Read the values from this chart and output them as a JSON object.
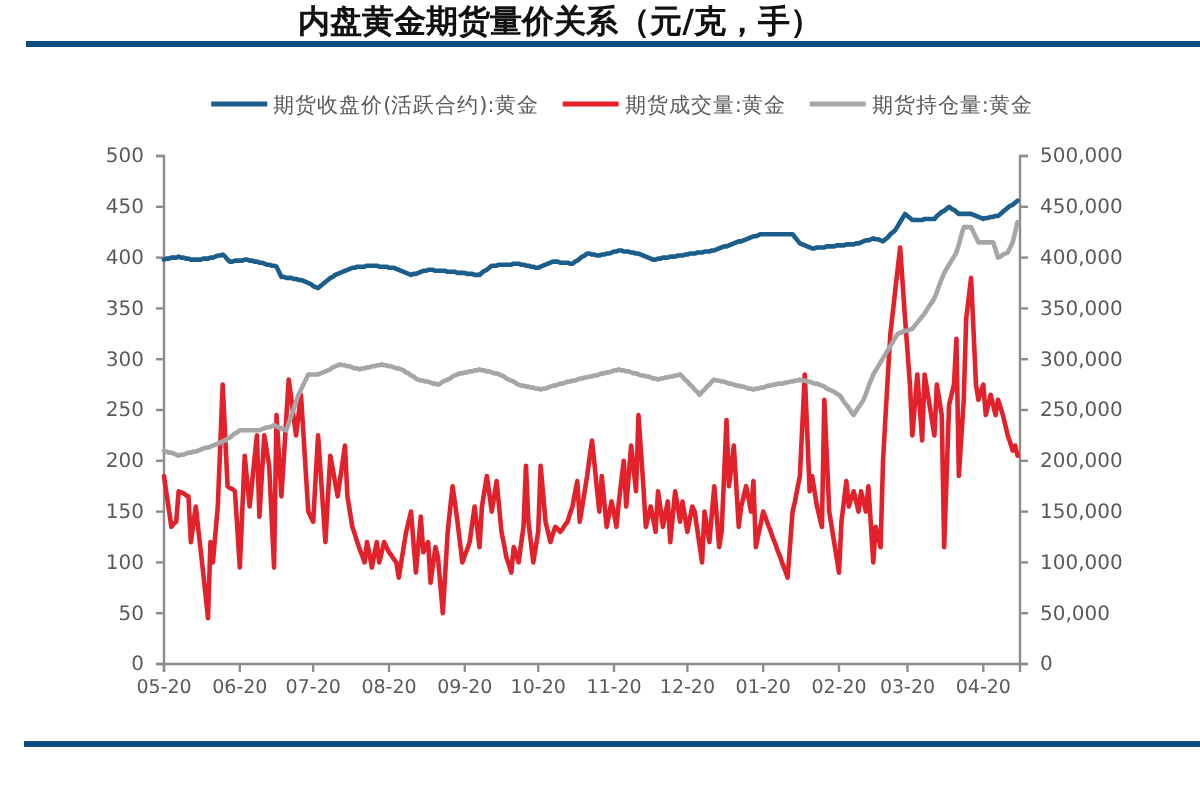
{
  "chart_data": {
    "type": "line",
    "title": "内盘黄金期货量价关系（元/克，手）",
    "legend": "top",
    "categories": [
      "05-20",
      null,
      null,
      null,
      null,
      null,
      null,
      null,
      null,
      null,
      null,
      null,
      null,
      null,
      null,
      null,
      null,
      null,
      null,
      null,
      null,
      null,
      null,
      null,
      null,
      null,
      null,
      null,
      null,
      null,
      null,
      "06-20",
      null,
      null,
      null,
      null,
      null,
      null,
      null,
      null,
      null,
      null,
      null,
      null,
      null,
      null,
      null,
      null,
      null,
      null,
      null,
      null,
      null,
      null,
      null,
      null,
      null,
      null,
      null,
      null,
      null,
      "07-20",
      null,
      null,
      null,
      null,
      null,
      null,
      null,
      null,
      null,
      null,
      null,
      null,
      null,
      null,
      null,
      null,
      null,
      null,
      null,
      null,
      null,
      null,
      null,
      null,
      null,
      null,
      null,
      null,
      null,
      null,
      "08-20",
      null,
      null,
      null,
      null,
      null,
      null,
      null,
      null,
      null,
      null,
      null,
      null,
      null,
      null,
      null,
      null,
      null,
      null,
      null,
      null,
      null,
      null,
      null,
      null,
      null,
      null,
      null,
      null,
      null,
      null,
      "09-20",
      null,
      null,
      null,
      null,
      null,
      null,
      null,
      null,
      null,
      null,
      null,
      null,
      null,
      null,
      null,
      null,
      null,
      null,
      null,
      null,
      null,
      null,
      null,
      null,
      null,
      null,
      null,
      null,
      null,
      "10-20",
      null,
      null,
      null,
      null,
      null,
      null,
      null,
      null,
      null,
      null,
      null,
      null,
      null,
      null,
      null,
      null,
      null,
      null,
      null,
      null,
      null,
      null,
      null,
      null,
      null,
      null,
      null,
      null,
      null,
      null,
      "11-20",
      null,
      null,
      null,
      null,
      null,
      null,
      null,
      null,
      null,
      null,
      null,
      null,
      null,
      null,
      null,
      null,
      null,
      null,
      null,
      null,
      null,
      null,
      null,
      null,
      null,
      null,
      null,
      null,
      null,
      "12-20",
      null,
      null,
      null,
      null,
      null,
      null,
      null,
      null,
      null,
      null,
      null,
      null,
      null,
      null,
      null,
      null,
      null,
      null,
      null,
      null,
      null,
      null,
      null,
      null,
      null,
      null,
      null,
      null,
      null,
      null,
      "01-20",
      null,
      null,
      null,
      null,
      null,
      null,
      null,
      null,
      null,
      null,
      null,
      null,
      null,
      null,
      null,
      null,
      null,
      null,
      null,
      null,
      null,
      null,
      null,
      null,
      null,
      null,
      null,
      null,
      null,
      null,
      "02-20",
      null,
      null,
      null,
      null,
      null,
      null,
      null,
      null,
      null,
      null,
      null,
      null,
      null,
      null,
      null,
      null,
      null,
      null,
      null,
      null,
      null,
      null,
      null,
      null,
      null,
      null,
      null,
      "03-20",
      null,
      null,
      null,
      null,
      null,
      null,
      null,
      null,
      null,
      null,
      null,
      null,
      null,
      null,
      null,
      null,
      null,
      null,
      null,
      null,
      null,
      null,
      null,
      null,
      null,
      null,
      null,
      null,
      null,
      null,
      "04-20",
      null,
      null,
      null,
      null,
      null,
      null,
      null,
      null,
      null,
      null,
      null,
      null,
      null,
      null,
      null
    ],
    "ylim": [
      0,
      500
    ],
    "yticks": [
      0,
      50,
      100,
      150,
      200,
      250,
      300,
      350,
      400,
      450,
      500
    ],
    "y2lim": [
      0,
      500000
    ],
    "y2ticks": [
      {
        "value": 0,
        "label": "0"
      },
      {
        "value": 50000,
        "label": "50,000"
      },
      {
        "value": 100000,
        "label": "100,000"
      },
      {
        "value": 150000,
        "label": "150,000"
      },
      {
        "value": 200000,
        "label": "200,000"
      },
      {
        "value": 250000,
        "label": "250,000"
      },
      {
        "value": 300000,
        "label": "300,000"
      },
      {
        "value": 350000,
        "label": "350,000"
      },
      {
        "value": 400000,
        "label": "400,000"
      },
      {
        "value": 450000,
        "label": "450,000"
      },
      {
        "value": 500000,
        "label": "500,000"
      }
    ],
    "series": [
      {
        "name": "期货收盘价(活跃合约):黄金",
        "color": "#1b5e8c",
        "values": [
          398,
          399,
          399,
          400,
          400,
          400,
          401,
          400,
          400,
          399,
          399,
          398,
          398,
          398,
          398,
          398,
          399,
          399,
          399,
          400,
          400,
          401,
          402,
          402,
          403,
          401,
          398,
          396,
          396,
          397,
          397,
          397,
          397,
          398,
          398,
          397,
          397,
          396,
          396,
          395,
          395,
          394,
          393,
          393,
          392,
          392,
          391,
          386,
          381,
          381,
          380,
          380,
          380,
          379,
          379,
          378,
          378,
          377,
          376,
          375,
          374,
          372,
          371,
          370,
          372,
          374,
          376,
          378,
          380,
          381,
          383,
          384,
          385,
          386,
          387,
          388,
          389,
          390,
          390,
          391,
          391,
          391,
          391,
          392,
          392,
          392,
          392,
          392,
          391,
          391,
          391,
          391,
          390,
          390,
          390,
          389,
          388,
          387,
          386,
          385,
          384,
          383,
          384,
          384,
          385,
          386,
          387,
          387,
          388,
          388,
          388,
          387,
          387,
          387,
          387,
          387,
          386,
          386,
          386,
          386,
          385,
          385,
          385,
          385,
          384,
          384,
          384,
          383,
          383,
          383,
          385,
          387,
          388,
          390,
          392,
          392,
          392,
          393,
          393,
          393,
          393,
          393,
          393,
          394,
          394,
          394,
          393,
          393,
          392,
          392,
          391,
          391,
          390,
          390,
          391,
          392,
          393,
          394,
          395,
          396,
          396,
          396,
          395,
          395,
          395,
          395,
          394,
          394,
          396,
          397,
          399,
          401,
          402,
          404,
          404,
          403,
          403,
          402,
          402,
          403,
          403,
          404,
          404,
          405,
          406,
          406,
          407,
          407,
          406,
          406,
          406,
          405,
          405,
          404,
          404,
          403,
          402,
          401,
          400,
          399,
          398,
          398,
          399,
          399,
          400,
          400,
          400,
          401,
          401,
          401,
          402,
          402,
          402,
          403,
          403,
          404,
          404,
          404,
          405,
          405,
          405,
          406,
          406,
          406,
          407,
          407,
          408,
          409,
          410,
          411,
          411,
          412,
          413,
          414,
          415,
          416,
          416,
          417,
          418,
          419,
          420,
          421,
          421,
          422,
          423,
          423,
          423,
          423,
          423,
          423,
          423,
          423,
          423,
          423,
          423,
          423,
          423,
          423,
          420,
          417,
          414,
          413,
          412,
          411,
          410,
          409,
          409,
          410,
          410,
          410,
          410,
          411,
          411,
          411,
          411,
          412,
          412,
          412,
          412,
          413,
          413,
          413,
          413,
          414,
          414,
          415,
          416,
          417,
          417,
          418,
          419,
          418,
          418,
          417,
          416,
          418,
          420,
          423,
          425,
          427,
          431,
          435,
          439,
          443,
          441,
          439,
          437,
          437,
          437,
          437,
          437,
          438,
          438,
          438,
          438,
          438,
          441,
          443,
          445,
          446,
          448,
          450,
          448,
          447,
          445,
          443,
          443,
          443,
          443,
          443,
          443,
          442,
          441,
          440,
          439,
          438,
          439,
          439,
          440,
          440,
          441,
          441,
          443,
          445,
          447,
          449,
          451,
          452,
          454,
          456,
          null
        ]
      },
      {
        "name": "期货成交量:黄金",
        "color": "#e3212a",
        "axis": "y2",
        "values": [
          185000,
          168000,
          152000,
          135000,
          138000,
          140000,
          170000,
          169000,
          168000,
          166000,
          165000,
          120000,
          138000,
          155000,
          133000,
          112000,
          90000,
          68000,
          45000,
          120000,
          100000,
          128000,
          155000,
          215000,
          275000,
          225000,
          175000,
          173000,
          172000,
          170000,
          133000,
          95000,
          150000,
          205000,
          180000,
          155000,
          178000,
          202000,
          225000,
          145000,
          185000,
          225000,
          210000,
          195000,
          145000,
          95000,
          245000,
          205000,
          165000,
          203000,
          242000,
          280000,
          262000,
          243000,
          225000,
          245000,
          265000,
          227000,
          188000,
          150000,
          145000,
          140000,
          183000,
          225000,
          190000,
          155000,
          120000,
          163000,
          205000,
          192000,
          178000,
          165000,
          182000,
          198000,
          215000,
          165000,
          150000,
          135000,
          128000,
          120000,
          113000,
          107000,
          100000,
          120000,
          108000,
          95000,
          108000,
          120000,
          100000,
          110000,
          120000,
          115000,
          110000,
          107000,
          103000,
          100000,
          85000,
          100000,
          115000,
          130000,
          140000,
          150000,
          120000,
          90000,
          118000,
          145000,
          110000,
          115000,
          120000,
          80000,
          98000,
          115000,
          105000,
          78000,
          50000,
          90000,
          130000,
          153000,
          175000,
          158000,
          140000,
          120000,
          100000,
          107000,
          113000,
          120000,
          138000,
          155000,
          135000,
          115000,
          155000,
          170000,
          185000,
          168000,
          150000,
          165000,
          180000,
          155000,
          130000,
          118000,
          105000,
          98000,
          90000,
          115000,
          108000,
          100000,
          118000,
          135000,
          195000,
          140000,
          120000,
          100000,
          115000,
          130000,
          195000,
          168000,
          140000,
          130000,
          120000,
          128000,
          135000,
          133000,
          130000,
          133000,
          137000,
          140000,
          148000,
          155000,
          168000,
          180000,
          140000,
          155000,
          170000,
          185000,
          203000,
          220000,
          197000,
          173000,
          150000,
          185000,
          160000,
          135000,
          148000,
          160000,
          148000,
          135000,
          160000,
          180000,
          200000,
          155000,
          185000,
          215000,
          193000,
          170000,
          245000,
          210000,
          175000,
          135000,
          145000,
          155000,
          143000,
          130000,
          170000,
          153000,
          135000,
          148000,
          160000,
          120000,
          145000,
          170000,
          155000,
          140000,
          160000,
          145000,
          130000,
          143000,
          155000,
          150000,
          133000,
          117000,
          100000,
          150000,
          135000,
          120000,
          148000,
          175000,
          145000,
          115000,
          130000,
          185000,
          240000,
          175000,
          195000,
          215000,
          175000,
          135000,
          155000,
          165000,
          175000,
          163000,
          150000,
          180000,
          115000,
          127000,
          138000,
          150000,
          144000,
          137000,
          131000,
          124000,
          118000,
          111000,
          105000,
          98000,
          92000,
          85000,
          118000,
          150000,
          160000,
          173000,
          185000,
          235000,
          285000,
          228000,
          170000,
          185000,
          170000,
          155000,
          145000,
          135000,
          260000,
          205000,
          150000,
          135000,
          120000,
          105000,
          90000,
          140000,
          160000,
          180000,
          155000,
          163000,
          170000,
          160000,
          150000,
          170000,
          160000,
          150000,
          175000,
          138000,
          100000,
          135000,
          125000,
          115000,
          200000,
          243000,
          285000,
          325000,
          346000,
          368000,
          389000,
          410000,
          375000,
          340000,
          308000,
          275000,
          225000,
          255000,
          285000,
          253000,
          220000,
          285000,
          270000,
          255000,
          240000,
          225000,
          275000,
          260000,
          245000,
          115000,
          185000,
          255000,
          265000,
          275000,
          320000,
          185000,
          223000,
          260000,
          340000,
          360000,
          380000,
          328000,
          275000,
          260000,
          268000,
          275000,
          245000,
          255000,
          265000,
          255000,
          245000,
          260000,
          253000,
          245000,
          235000,
          225000,
          218000,
          210000,
          215000,
          205000,
          null
        ]
      },
      {
        "name": "期货持仓量:黄金",
        "color": "#a6a6a6",
        "axis": "y2",
        "values": [
          210000,
          209000,
          208000,
          208000,
          207000,
          206000,
          205000,
          206000,
          206000,
          207000,
          208000,
          208000,
          209000,
          209000,
          210000,
          211000,
          212000,
          213000,
          213000,
          214000,
          215000,
          216000,
          217000,
          218000,
          219000,
          220000,
          222000,
          223000,
          225000,
          227000,
          228000,
          230000,
          230000,
          230000,
          230000,
          230000,
          230000,
          230000,
          230000,
          230000,
          231000,
          232000,
          233000,
          233000,
          234000,
          235000,
          234000,
          233000,
          232000,
          231000,
          230000,
          237000,
          244000,
          251000,
          258000,
          265000,
          270000,
          275000,
          280000,
          285000,
          285000,
          285000,
          285000,
          285000,
          286000,
          287000,
          288000,
          289000,
          290000,
          292000,
          293000,
          294000,
          295000,
          294000,
          294000,
          293000,
          293000,
          292000,
          291000,
          291000,
          290000,
          291000,
          291000,
          292000,
          292000,
          293000,
          293000,
          294000,
          294000,
          295000,
          294000,
          294000,
          293000,
          293000,
          292000,
          291000,
          291000,
          290000,
          289000,
          287000,
          286000,
          284000,
          283000,
          281000,
          280000,
          279000,
          279000,
          278000,
          278000,
          277000,
          276000,
          276000,
          275000,
          276000,
          278000,
          279000,
          280000,
          281000,
          283000,
          284000,
          285000,
          286000,
          286000,
          287000,
          287000,
          288000,
          288000,
          289000,
          289000,
          290000,
          289000,
          289000,
          288000,
          288000,
          287000,
          286000,
          286000,
          285000,
          284000,
          283000,
          281000,
          280000,
          279000,
          278000,
          276000,
          275000,
          274000,
          274000,
          273000,
          273000,
          272000,
          272000,
          271000,
          271000,
          270000,
          271000,
          271000,
          272000,
          273000,
          274000,
          274000,
          275000,
          276000,
          276000,
          277000,
          278000,
          278000,
          279000,
          279000,
          280000,
          281000,
          281000,
          282000,
          282000,
          283000,
          283000,
          284000,
          284000,
          285000,
          286000,
          286000,
          287000,
          287000,
          288000,
          289000,
          289000,
          290000,
          289000,
          289000,
          288000,
          288000,
          287000,
          286000,
          286000,
          285000,
          284000,
          284000,
          283000,
          283000,
          282000,
          281000,
          281000,
          280000,
          281000,
          281000,
          282000,
          282000,
          283000,
          283000,
          284000,
          284000,
          285000,
          283000,
          280000,
          278000,
          275000,
          273000,
          270000,
          268000,
          265000,
          268000,
          270000,
          273000,
          275000,
          278000,
          280000,
          279000,
          279000,
          278000,
          278000,
          277000,
          276000,
          276000,
          275000,
          274000,
          274000,
          273000,
          273000,
          272000,
          271000,
          271000,
          270000,
          271000,
          271000,
          272000,
          272000,
          273000,
          274000,
          274000,
          275000,
          275000,
          276000,
          276000,
          276000,
          277000,
          277000,
          278000,
          278000,
          279000,
          279000,
          280000,
          279000,
          279000,
          278000,
          278000,
          277000,
          276000,
          276000,
          275000,
          274000,
          273000,
          271000,
          270000,
          269000,
          268000,
          266000,
          265000,
          262000,
          258000,
          255000,
          252000,
          248000,
          245000,
          249000,
          253000,
          256000,
          260000,
          266000,
          273000,
          279000,
          285000,
          289000,
          293000,
          297000,
          301000,
          305000,
          309000,
          313000,
          317000,
          321000,
          325000,
          326000,
          327000,
          328000,
          328000,
          329000,
          330000,
          333000,
          336000,
          339000,
          342000,
          345000,
          349000,
          353000,
          356000,
          360000,
          366000,
          373000,
          379000,
          385000,
          389000,
          393000,
          397000,
          401000,
          405000,
          413000,
          422000,
          430000,
          430000,
          430000,
          430000,
          425000,
          420000,
          415000,
          415000,
          415000,
          415000,
          415000,
          415000,
          415000,
          408000,
          400000,
          401000,
          403000,
          404000,
          405000,
          410000,
          415000,
          425000,
          435000,
          null
        ]
      }
    ]
  }
}
